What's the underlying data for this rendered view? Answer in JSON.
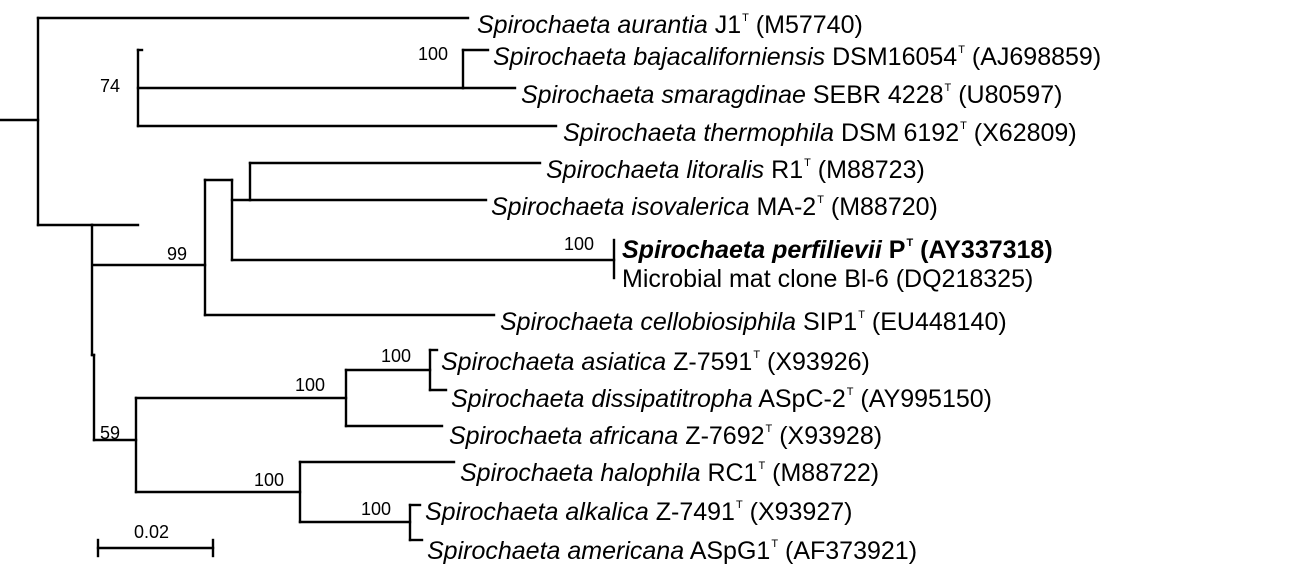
{
  "leaves": [
    {
      "genus": "Spirochaeta",
      "species": "aurantia",
      "strain": "J1",
      "type": "T",
      "accession": "(M57740)"
    },
    {
      "genus": "Spirochaeta",
      "species": "bajacaliforniensis",
      "strain": "DSM16054",
      "type": "T",
      "accession": "(AJ698859)"
    },
    {
      "genus": "Spirochaeta",
      "species": "smaragdinae",
      "strain": "SEBR 4228",
      "type": "T",
      "accession": "(U80597)"
    },
    {
      "genus": "Spirochaeta",
      "species": "thermophila",
      "strain": "DSM 6192",
      "type": "T",
      "accession": "(X62809)"
    },
    {
      "genus": "Spirochaeta",
      "species": "litoralis",
      "strain": "R1",
      "type": "T",
      "accession": "(M88723)"
    },
    {
      "genus": "Spirochaeta",
      "species": "isovalerica",
      "strain": "MA-2",
      "type": "T",
      "accession": "(M88720)"
    },
    {
      "genus": "Spirochaeta",
      "species": "perfilievii",
      "strain": "P",
      "type": "T",
      "accession": "(AY337318)"
    },
    {
      "name": "Microbial mat clone Bl-6",
      "accession": "(DQ218325)"
    },
    {
      "genus": "Spirochaeta",
      "species": "cellobiosiphila",
      "strain": "SIP1",
      "type": "T",
      "accession": "(EU448140)"
    },
    {
      "genus": "Spirochaeta",
      "species": "asiatica",
      "strain": "Z-7591",
      "type": "T",
      "accession": "(X93926)"
    },
    {
      "genus": "Spirochaeta",
      "species": "dissipatitropha",
      "strain": "ASpC-2",
      "type": "T",
      "accession": "(AY995150)"
    },
    {
      "genus": "Spirochaeta",
      "species": "africana",
      "strain": "Z-7692",
      "type": "T",
      "accession": "(X93928)"
    },
    {
      "genus": "Spirochaeta",
      "species": "halophila",
      "strain": "RC1",
      "type": "T",
      "accession": "(M88722)"
    },
    {
      "genus": "Spirochaeta",
      "species": "alkalica",
      "strain": "Z-7491",
      "type": "T",
      "accession": "(X93927)"
    },
    {
      "genus": "Spirochaeta",
      "species": "americana",
      "strain": "ASpG1",
      "type": "T",
      "accession": "(AF373921)"
    }
  ],
  "bootstrap": [
    "100",
    "74",
    "100",
    "99",
    "100",
    "100",
    "59",
    "100",
    "100"
  ],
  "scale_bar": {
    "label": "0.02"
  }
}
